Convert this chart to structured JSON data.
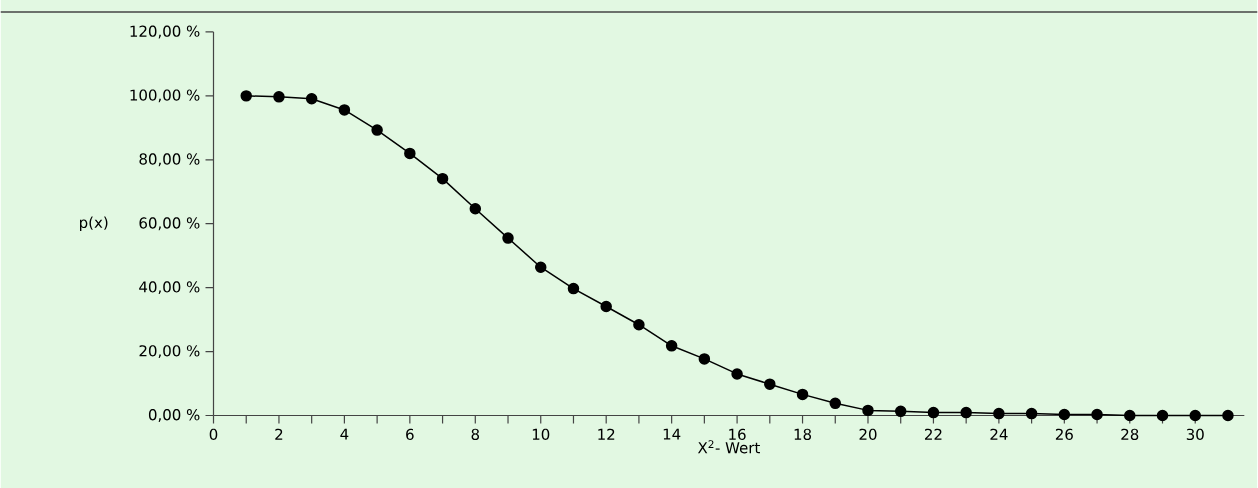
{
  "chart_data": {
    "type": "line",
    "xlabel": "X$^{2}$- Wert",
    "ylabel": "p(x)",
    "x": [
      1,
      2,
      3,
      4,
      5,
      6,
      7,
      8,
      9,
      10,
      11,
      12,
      13,
      14,
      15,
      16,
      17,
      18,
      19,
      20,
      21,
      22,
      23,
      24,
      25,
      26,
      27,
      28,
      29,
      30,
      31
    ],
    "series": [
      {
        "color": "#000000",
        "values": [
          100,
          99.7,
          99.1,
          95.6,
          89.3,
          82.0,
          74.1,
          64.7,
          55.5,
          46.4,
          39.7,
          34.1,
          28.4,
          21.8,
          17.7,
          13.0,
          9.8,
          6.6,
          3.8,
          1.6,
          1.3,
          0.9,
          0.9,
          0.6,
          0.6,
          0.3,
          0.3,
          0,
          0,
          0,
          0
        ]
      }
    ],
    "marker": "circle",
    "line_style": "solid",
    "xlim": [
      0,
      31.5
    ],
    "xticks": [
      0,
      2,
      4,
      6,
      8,
      10,
      12,
      14,
      16,
      18,
      20,
      22,
      24,
      26,
      28,
      30
    ],
    "ylim": [
      0,
      120
    ],
    "yticks": [
      {
        "value": 0,
        "label": "0,00 %"
      },
      {
        "value": 20,
        "label": "20,00 %"
      },
      {
        "value": 40,
        "label": "40,00 %"
      },
      {
        "value": 60,
        "label": "60,00 %"
      },
      {
        "value": 80,
        "label": "80,00 %"
      },
      {
        "value": 100,
        "label": "100,00 %"
      },
      {
        "value": 120,
        "label": "120,00 %"
      }
    ],
    "grid": false
  }
}
